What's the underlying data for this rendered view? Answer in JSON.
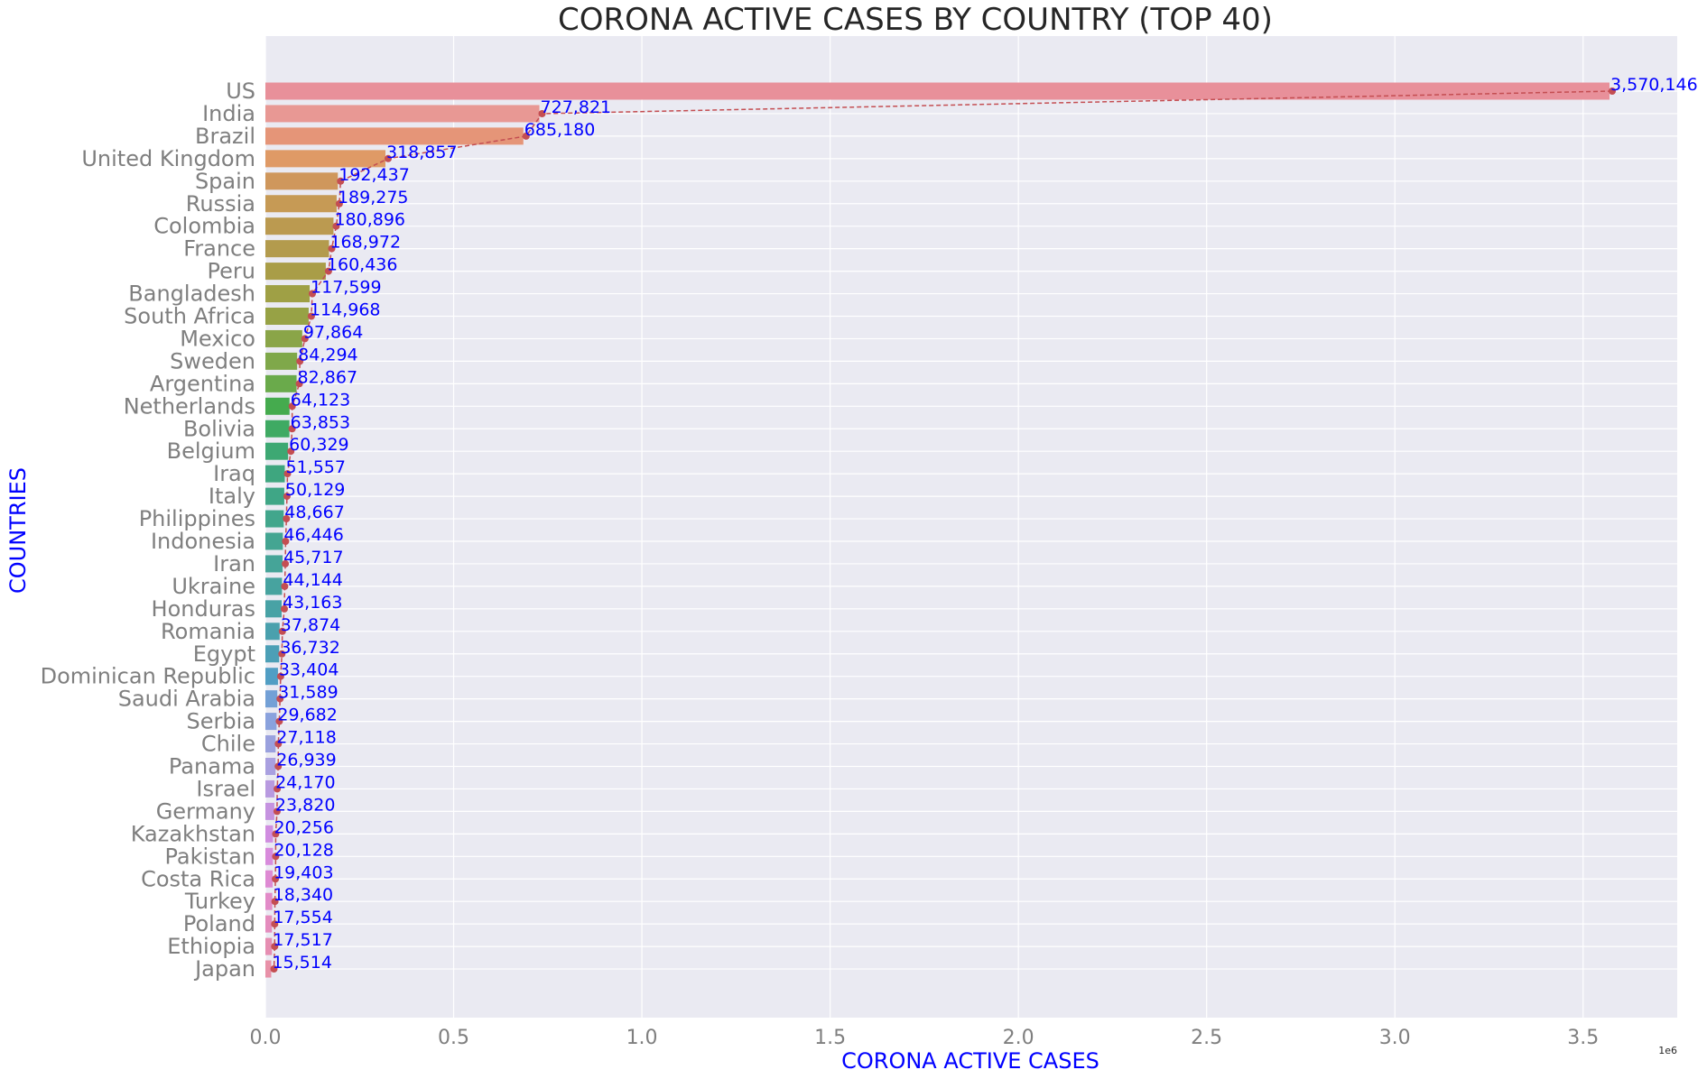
{
  "chart_data": {
    "type": "bar",
    "orientation": "horizontal",
    "title": "CORONA ACTIVE CASES BY COUNTRY (TOP 40)",
    "xlabel": "CORONA ACTIVE CASES",
    "ylabel": "COUNTRIES",
    "x_offset_label": "1e6",
    "xlim": [
      0,
      3750000
    ],
    "x_ticks": [
      0,
      500000,
      1000000,
      1500000,
      2000000,
      2500000,
      3000000,
      3500000
    ],
    "x_tick_labels": [
      "0.0",
      "0.5",
      "1.0",
      "1.5",
      "2.0",
      "2.5",
      "3.0",
      "3.5"
    ],
    "grid": true,
    "background": "#eaeaf2",
    "line_color": "#c44e52",
    "label_color": "#0000ff",
    "categories": [
      "US",
      "India",
      "Brazil",
      "United Kingdom",
      "Spain",
      "Russia",
      "Colombia",
      "France",
      "Peru",
      "Bangladesh",
      "South Africa",
      "Mexico",
      "Sweden",
      "Argentina",
      "Netherlands",
      "Bolivia",
      "Belgium",
      "Iraq",
      "Italy",
      "Philippines",
      "Indonesia",
      "Iran",
      "Ukraine",
      "Honduras",
      "Romania",
      "Egypt",
      "Dominican Republic",
      "Saudi Arabia",
      "Serbia",
      "Chile",
      "Panama",
      "Israel",
      "Germany",
      "Kazakhstan",
      "Pakistan",
      "Costa Rica",
      "Turkey",
      "Poland",
      "Ethiopia",
      "Japan"
    ],
    "values": [
      3570146,
      727821,
      685180,
      318857,
      192437,
      189275,
      180896,
      168972,
      160436,
      117599,
      114968,
      97864,
      84294,
      82867,
      64123,
      63853,
      60329,
      51557,
      50129,
      48667,
      46446,
      45717,
      44144,
      43163,
      37874,
      36732,
      33404,
      31589,
      29682,
      27118,
      26939,
      24170,
      23820,
      20256,
      20128,
      19403,
      18340,
      17554,
      17517,
      15514
    ],
    "value_labels": [
      "3,570,146",
      "727,821",
      "685,180",
      "318,857",
      "192,437",
      "189,275",
      "180,896",
      "168,972",
      "160,436",
      "117,599",
      "114,968",
      "97,864",
      "84,294",
      "82,867",
      "64,123",
      "63,853",
      "60,329",
      "51,557",
      "50,129",
      "48,667",
      "46,446",
      "45,717",
      "44,144",
      "43,163",
      "37,874",
      "36,732",
      "33,404",
      "31,589",
      "29,682",
      "27,118",
      "26,939",
      "24,170",
      "23,820",
      "20,256",
      "20,128",
      "19,403",
      "18,340",
      "17,554",
      "17,517",
      "15,514"
    ],
    "bar_colors": [
      "#e8909a",
      "#e89894",
      "#e59578",
      "#df9a66",
      "#cf975c",
      "#c69a55",
      "#bb9a50",
      "#b39b4d",
      "#a99d47",
      "#9fa045",
      "#97a245",
      "#8aa548",
      "#7fa84a",
      "#6aaa4b",
      "#45ab4e",
      "#3faa63",
      "#3da873",
      "#3ea67f",
      "#3fa686",
      "#42a68c",
      "#44a592",
      "#45a498",
      "#47a39f",
      "#48a2a5",
      "#4aa0ad",
      "#4c9fb6",
      "#519ec4",
      "#73a0d6",
      "#8aa2dd",
      "#9aa1de",
      "#a9a0e0",
      "#b89ae0",
      "#c593e0",
      "#d08de0",
      "#d88bdc",
      "#de8ad3",
      "#e28bc8",
      "#e48cbd",
      "#e68eb2",
      "#e891a8"
    ]
  }
}
